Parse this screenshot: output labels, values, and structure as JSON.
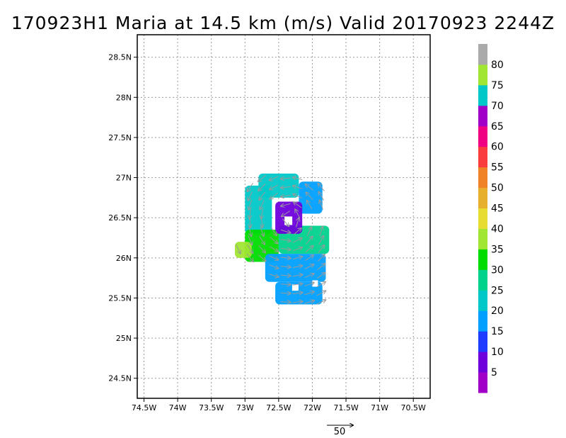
{
  "chart_data": {
    "type": "heatmap",
    "title": "170923H1 Maria at 14.5 km (m/s) Valid 20170923 2244Z",
    "xlim": [
      -74.6,
      -70.25
    ],
    "ylim": [
      24.25,
      28.78
    ],
    "x_ticks": [
      {
        "value": -74.5,
        "label": "74.5W"
      },
      {
        "value": -74.0,
        "label": "74W"
      },
      {
        "value": -73.5,
        "label": "73.5W"
      },
      {
        "value": -73.0,
        "label": "73W"
      },
      {
        "value": -72.5,
        "label": "72.5W"
      },
      {
        "value": -72.0,
        "label": "72W"
      },
      {
        "value": -71.5,
        "label": "71.5W"
      },
      {
        "value": -71.0,
        "label": "71W"
      },
      {
        "value": -70.5,
        "label": "70.5W"
      }
    ],
    "y_ticks": [
      {
        "value": 24.5,
        "label": "24.5N"
      },
      {
        "value": 25.0,
        "label": "25N"
      },
      {
        "value": 25.5,
        "label": "25.5N"
      },
      {
        "value": 26.0,
        "label": "26N"
      },
      {
        "value": 26.5,
        "label": "26.5N"
      },
      {
        "value": 27.0,
        "label": "27N"
      },
      {
        "value": 27.5,
        "label": "27.5N"
      },
      {
        "value": 28.0,
        "label": "28N"
      },
      {
        "value": 28.5,
        "label": "28.5N"
      }
    ],
    "grid": true,
    "colorbar": {
      "labels": [
        "5",
        "10",
        "15",
        "20",
        "25",
        "30",
        "35",
        "40",
        "45",
        "50",
        "55",
        "60",
        "65",
        "70",
        "75",
        "80"
      ],
      "colors": [
        "#a000c8",
        "#6e00dc",
        "#1e3cff",
        "#00a0ff",
        "#00c8c8",
        "#00d28c",
        "#00dc00",
        "#a0e632",
        "#e6dc32",
        "#e6af2d",
        "#f08228",
        "#fa3c3c",
        "#f00082",
        "#a000c8",
        "#00c8c8",
        "#a0e632",
        "#aaaaaa"
      ]
    },
    "wind_field": {
      "center": {
        "lon": -72.35,
        "lat": 26.48
      },
      "patches": [
        {
          "lon": [
            -72.8,
            -72.2
          ],
          "lat": [
            26.75,
            27.05
          ],
          "speed": 22
        },
        {
          "lon": [
            -72.2,
            -71.85
          ],
          "lat": [
            26.55,
            26.95
          ],
          "speed": 17
        },
        {
          "lon": [
            -73.0,
            -72.6
          ],
          "lat": [
            26.3,
            26.9
          ],
          "speed": 24
        },
        {
          "lon": [
            -73.0,
            -72.5
          ],
          "lat": [
            25.95,
            26.35
          ],
          "speed": 31
        },
        {
          "lon": [
            -72.5,
            -71.75
          ],
          "lat": [
            26.05,
            26.4
          ],
          "speed": 28
        },
        {
          "lon": [
            -72.7,
            -71.8
          ],
          "lat": [
            25.7,
            26.05
          ],
          "speed": 19
        },
        {
          "lon": [
            -72.55,
            -71.85
          ],
          "lat": [
            25.42,
            25.7
          ],
          "speed": 16
        },
        {
          "lon": [
            -73.15,
            -72.9
          ],
          "lat": [
            26.0,
            26.2
          ],
          "speed": 37
        },
        {
          "lon": [
            -72.55,
            -72.15
          ],
          "lat": [
            26.3,
            26.7
          ],
          "speed": 8
        }
      ],
      "reference_vector": {
        "label": "50",
        "speed": 50
      }
    }
  }
}
